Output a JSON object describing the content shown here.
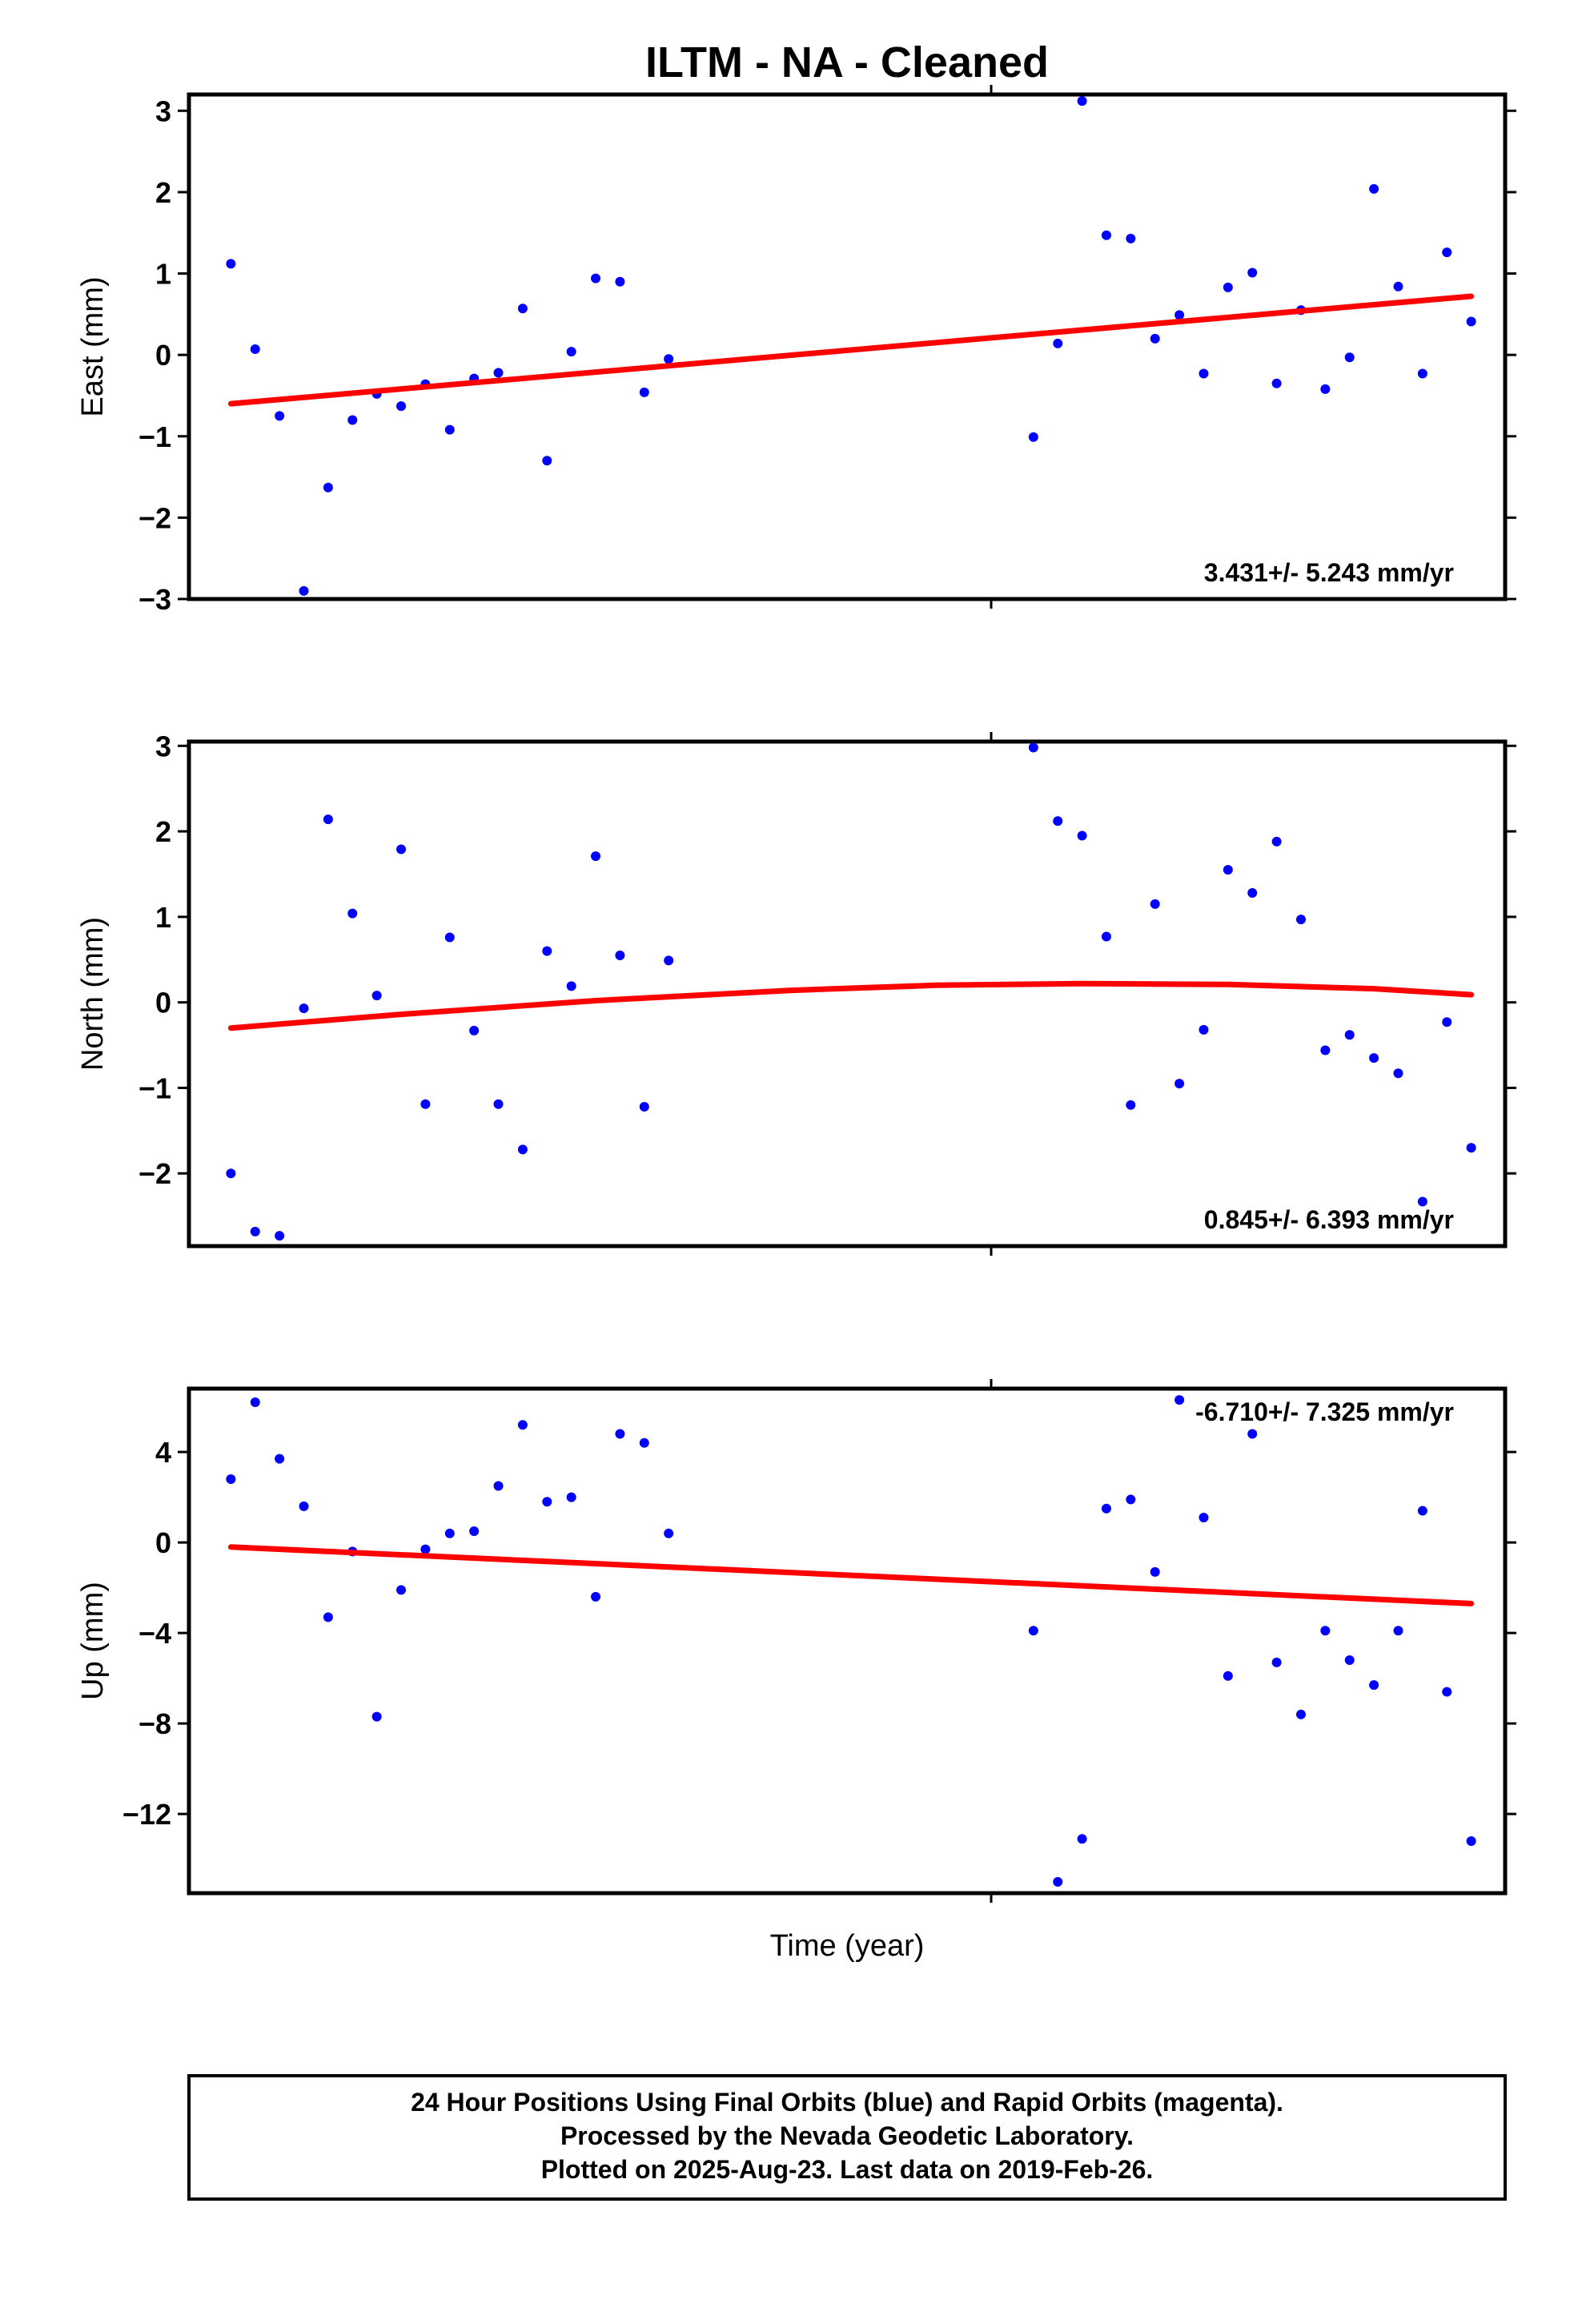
{
  "chart_data": {
    "type": "scatter",
    "title": "ILTM  - NA - Cleaned",
    "xlabel": "Time (year)",
    "panels": [
      {
        "key": "east",
        "ylabel": "East (mm)",
        "ylim": [
          -3,
          3.2
        ],
        "yticks": [
          3,
          2,
          1,
          0,
          -1,
          -2,
          -3
        ],
        "yticklabels": [
          "3",
          "2",
          "1",
          "0",
          "−1",
          "−2",
          "−3"
        ],
        "rate_label": "3.431+/- 5.243 mm/yr",
        "trend": [
          [
            1,
            -0.6
          ],
          [
            52,
            0.72
          ]
        ],
        "points": [
          [
            1,
            1.12
          ],
          [
            2,
            0.07
          ],
          [
            3,
            -0.75
          ],
          [
            4,
            -2.9
          ],
          [
            5,
            -1.63
          ],
          [
            6,
            -0.8
          ],
          [
            7,
            -0.48
          ],
          [
            8,
            -0.63
          ],
          [
            9,
            -0.36
          ],
          [
            10,
            -0.92
          ],
          [
            11,
            -0.29
          ],
          [
            12,
            -0.22
          ],
          [
            13,
            0.57
          ],
          [
            14,
            -1.3
          ],
          [
            15,
            0.04
          ],
          [
            16,
            0.94
          ],
          [
            17,
            0.9
          ],
          [
            18,
            -0.46
          ],
          [
            19,
            -0.05
          ],
          [
            34,
            -1.01
          ],
          [
            35,
            0.14
          ],
          [
            36,
            3.12
          ],
          [
            37,
            1.47
          ],
          [
            38,
            1.43
          ],
          [
            39,
            0.2
          ],
          [
            40,
            0.49
          ],
          [
            41,
            -0.23
          ],
          [
            42,
            0.83
          ],
          [
            43,
            1.01
          ],
          [
            44,
            -0.35
          ],
          [
            45,
            0.55
          ],
          [
            46,
            -0.42
          ],
          [
            47,
            -0.03
          ],
          [
            48,
            2.04
          ],
          [
            49,
            0.84
          ],
          [
            50,
            -0.23
          ],
          [
            51,
            1.26
          ],
          [
            52,
            0.41
          ]
        ]
      },
      {
        "key": "north",
        "ylabel": "North (mm)",
        "ylim": [
          -2.85,
          3.05
        ],
        "yticks": [
          3,
          2,
          1,
          0,
          -1,
          -2
        ],
        "yticklabels": [
          "3",
          "2",
          "1",
          "0",
          "−1",
          "−2"
        ],
        "rate_label": "0.845+/- 6.393 mm/yr",
        "trend": [
          [
            1,
            -0.3
          ],
          [
            8,
            -0.14
          ],
          [
            16,
            0.02
          ],
          [
            24,
            0.14
          ],
          [
            30,
            0.2
          ],
          [
            36,
            0.22
          ],
          [
            42,
            0.21
          ],
          [
            48,
            0.16
          ],
          [
            52,
            0.09
          ]
        ],
        "points": [
          [
            1,
            -2.0
          ],
          [
            2,
            -2.68
          ],
          [
            3,
            -2.73
          ],
          [
            4,
            -0.07
          ],
          [
            5,
            2.14
          ],
          [
            6,
            1.04
          ],
          [
            7,
            0.08
          ],
          [
            8,
            1.79
          ],
          [
            9,
            -1.19
          ],
          [
            10,
            0.76
          ],
          [
            11,
            -0.33
          ],
          [
            12,
            -1.19
          ],
          [
            13,
            -1.72
          ],
          [
            14,
            0.6
          ],
          [
            15,
            0.19
          ],
          [
            16,
            1.71
          ],
          [
            17,
            0.55
          ],
          [
            18,
            -1.22
          ],
          [
            19,
            0.49
          ],
          [
            34,
            2.98
          ],
          [
            35,
            2.12
          ],
          [
            36,
            1.95
          ],
          [
            37,
            0.77
          ],
          [
            38,
            -1.2
          ],
          [
            39,
            1.15
          ],
          [
            40,
            -0.95
          ],
          [
            41,
            -0.32
          ],
          [
            42,
            1.55
          ],
          [
            43,
            1.28
          ],
          [
            44,
            1.88
          ],
          [
            45,
            0.97
          ],
          [
            46,
            -0.56
          ],
          [
            47,
            -0.38
          ],
          [
            48,
            -0.65
          ],
          [
            49,
            -0.83
          ],
          [
            50,
            -2.33
          ],
          [
            51,
            -0.23
          ],
          [
            52,
            -1.7
          ]
        ]
      },
      {
        "key": "up",
        "ylabel": "Up (mm)",
        "ylim": [
          -15.5,
          6.8
        ],
        "yticks": [
          4,
          0,
          -4,
          -8,
          -12
        ],
        "yticklabels": [
          "4",
          "0",
          "−4",
          "−8",
          "−12"
        ],
        "rate_label": "-6.710+/- 7.325 mm/yr",
        "trend": [
          [
            1,
            -0.2
          ],
          [
            52,
            -2.7
          ]
        ],
        "points": [
          [
            1,
            2.8
          ],
          [
            2,
            6.2
          ],
          [
            3,
            3.7
          ],
          [
            4,
            1.6
          ],
          [
            5,
            -3.3
          ],
          [
            6,
            -0.4
          ],
          [
            7,
            -7.7
          ],
          [
            8,
            -2.1
          ],
          [
            9,
            -0.3
          ],
          [
            10,
            0.4
          ],
          [
            11,
            0.5
          ],
          [
            12,
            2.5
          ],
          [
            13,
            5.2
          ],
          [
            14,
            1.8
          ],
          [
            15,
            2.0
          ],
          [
            16,
            -2.4
          ],
          [
            17,
            4.8
          ],
          [
            18,
            4.4
          ],
          [
            19,
            0.4
          ],
          [
            34,
            -3.9
          ],
          [
            35,
            -15.0
          ],
          [
            36,
            -13.1
          ],
          [
            37,
            1.5
          ],
          [
            38,
            1.9
          ],
          [
            39,
            -1.3
          ],
          [
            40,
            6.3
          ],
          [
            41,
            1.1
          ],
          [
            42,
            -5.9
          ],
          [
            43,
            4.8
          ],
          [
            44,
            -5.3
          ],
          [
            45,
            -7.6
          ],
          [
            46,
            -3.9
          ],
          [
            47,
            -5.2
          ],
          [
            48,
            -6.3
          ],
          [
            49,
            -3.9
          ],
          [
            50,
            1.4
          ],
          [
            51,
            -6.6
          ],
          [
            52,
            -13.2
          ]
        ]
      }
    ]
  },
  "footer": {
    "line1": "24 Hour Positions Using Final Orbits (blue) and Rapid Orbits (magenta).",
    "line2": "Processed by the Nevada Geodetic Laboratory.",
    "line3": "Plotted on 2025-Aug-23. Last data on 2019-Feb-26."
  },
  "colors": {
    "points": "#0000ff",
    "trend": "#ff0000",
    "frame": "#000000"
  }
}
